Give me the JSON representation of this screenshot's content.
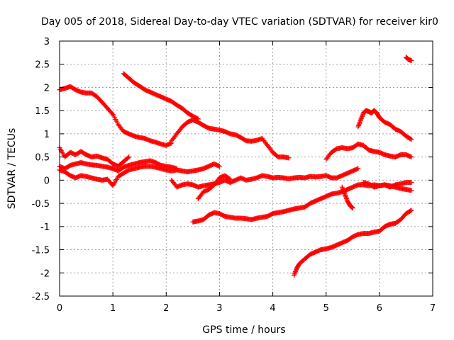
{
  "chart_data": {
    "type": "scatter",
    "title": "Day 005 of 2018, Sidereal Day-to-day VTEC variation (SDTVAR) for receiver kir0",
    "xlabel": "GPS time / hours",
    "ylabel": "SDTVAR / TECUs",
    "xlim": [
      0,
      7
    ],
    "ylim": [
      -2.5,
      3
    ],
    "xticks": [
      0,
      1,
      2,
      3,
      4,
      5,
      6,
      7
    ],
    "yticks": [
      -2.5,
      -2,
      -1.5,
      -1,
      -0.5,
      0,
      0.5,
      1,
      1.5,
      2,
      2.5,
      3
    ],
    "ytick_labels": [
      "-2.5",
      "-2",
      "-1.5",
      "-1",
      "-0.5",
      "0",
      "0.5",
      "1",
      "1.5",
      "2",
      "2.5",
      "3"
    ],
    "grid": true,
    "marker": "plus",
    "color": "#ff0000",
    "series": [
      {
        "x": [
          0,
          0.1,
          0.2,
          0.3,
          0.4,
          0.5,
          0.6,
          0.7,
          0.8,
          0.9,
          1.0,
          1.1,
          1.2,
          1.3,
          1.4,
          1.5,
          1.6,
          1.7,
          1.8,
          1.9,
          2.0,
          2.1
        ],
        "y": [
          1.95,
          1.98,
          2.02,
          1.95,
          1.9,
          1.88,
          1.88,
          1.8,
          1.68,
          1.55,
          1.42,
          1.2,
          1.05,
          1.0,
          0.95,
          0.92,
          0.9,
          0.85,
          0.82,
          0.78,
          0.75,
          0.8
        ]
      },
      {
        "x": [
          2.1,
          2.2,
          2.3,
          2.4,
          2.5,
          2.6,
          2.7,
          2.8,
          2.9,
          3.0,
          3.1,
          3.2,
          3.3,
          3.4,
          3.5,
          3.6,
          3.7,
          3.8,
          3.9,
          4.0,
          4.1,
          4.2,
          4.3
        ],
        "y": [
          0.85,
          1.0,
          1.15,
          1.25,
          1.3,
          1.25,
          1.18,
          1.12,
          1.1,
          1.08,
          1.05,
          1.0,
          0.98,
          0.92,
          0.85,
          0.84,
          0.86,
          0.9,
          0.75,
          0.6,
          0.5,
          0.5,
          0.48
        ]
      },
      {
        "x": [
          1.2,
          1.3,
          1.4,
          1.5,
          1.6,
          1.7,
          1.8,
          1.9,
          2.0,
          2.1,
          2.2,
          2.3,
          2.4,
          2.5,
          2.6
        ],
        "y": [
          2.3,
          2.2,
          2.1,
          2.03,
          1.95,
          1.9,
          1.85,
          1.8,
          1.75,
          1.7,
          1.62,
          1.55,
          1.45,
          1.38,
          1.32
        ]
      },
      {
        "x": [
          0,
          0.1,
          0.2,
          0.3,
          0.4,
          0.5,
          0.6,
          0.7,
          0.8,
          0.9,
          1.0,
          1.1,
          1.2,
          1.3
        ],
        "y": [
          0.7,
          0.5,
          0.6,
          0.55,
          0.62,
          0.55,
          0.5,
          0.52,
          0.48,
          0.45,
          0.35,
          0.3,
          0.4,
          0.5
        ]
      },
      {
        "x": [
          0,
          0.1,
          0.2,
          0.3,
          0.4,
          0.5,
          0.6,
          0.7,
          0.8,
          0.9,
          1.0,
          1.1,
          1.2,
          1.3,
          1.4,
          1.5,
          1.6,
          1.7,
          1.8,
          1.9,
          2.0,
          2.1,
          2.2
        ],
        "y": [
          0.3,
          0.25,
          0.32,
          0.35,
          0.38,
          0.35,
          0.33,
          0.32,
          0.3,
          0.28,
          0.25,
          0.2,
          0.28,
          0.32,
          0.35,
          0.38,
          0.4,
          0.42,
          0.38,
          0.32,
          0.3,
          0.28,
          0.25
        ]
      },
      {
        "x": [
          0,
          0.1,
          0.2,
          0.3,
          0.4,
          0.5,
          0.6,
          0.7,
          0.8,
          0.9,
          1.0,
          1.1,
          1.2,
          1.3,
          1.4,
          1.5,
          1.6,
          1.7,
          1.8,
          1.9,
          2.0,
          2.1,
          2.2,
          2.3,
          2.4,
          2.5,
          2.6,
          2.7,
          2.8,
          2.9,
          3.0
        ],
        "y": [
          0.22,
          0.18,
          0.1,
          0.05,
          0.1,
          0.08,
          0.05,
          0.02,
          0.0,
          0.02,
          -0.12,
          0.08,
          0.15,
          0.22,
          0.25,
          0.28,
          0.3,
          0.3,
          0.28,
          0.25,
          0.22,
          0.2,
          0.22,
          0.2,
          0.18,
          0.2,
          0.22,
          0.25,
          0.3,
          0.35,
          0.3
        ]
      },
      {
        "x": [
          2.1,
          2.2,
          2.3,
          2.4,
          2.5,
          2.6,
          2.7,
          2.8,
          2.9,
          3.0,
          3.1,
          3.2,
          3.3,
          3.4,
          3.5,
          3.6,
          3.7,
          3.8,
          3.9,
          4.0,
          4.1,
          4.2,
          4.3,
          4.4,
          4.5,
          4.6,
          4.7,
          4.8,
          4.9,
          5.0,
          5.1,
          5.2,
          5.3,
          5.4,
          5.5,
          5.6
        ],
        "y": [
          0.0,
          -0.15,
          -0.1,
          -0.08,
          -0.1,
          -0.15,
          -0.12,
          -0.1,
          -0.08,
          -0.05,
          0.0,
          -0.05,
          0.0,
          0.05,
          0.0,
          0.02,
          0.05,
          0.1,
          0.08,
          0.05,
          0.06,
          0.05,
          0.03,
          0.05,
          0.06,
          0.05,
          0.08,
          0.07,
          0.08,
          0.1,
          0.05,
          0.05,
          0.1,
          0.15,
          0.2,
          0.25
        ]
      },
      {
        "x": [
          2.5,
          2.6,
          2.7,
          2.8,
          2.9,
          3.0,
          3.1,
          3.2,
          3.3,
          3.4,
          3.5,
          3.6,
          3.7,
          3.8,
          3.9,
          4.0,
          4.1,
          4.2,
          4.3,
          4.4,
          4.5,
          4.6,
          4.7,
          4.8,
          4.9,
          5.0,
          5.1,
          5.2,
          5.3,
          5.4
        ],
        "y": [
          -0.9,
          -0.88,
          -0.85,
          -0.75,
          -0.7,
          -0.72,
          -0.78,
          -0.8,
          -0.82,
          -0.82,
          -0.83,
          -0.85,
          -0.82,
          -0.8,
          -0.78,
          -0.72,
          -0.7,
          -0.68,
          -0.65,
          -0.62,
          -0.6,
          -0.58,
          -0.5,
          -0.45,
          -0.4,
          -0.35,
          -0.3,
          -0.28,
          -0.25,
          -0.2
        ]
      },
      {
        "x": [
          2.6,
          2.7,
          2.8,
          2.9,
          3.0,
          3.1,
          3.2
        ],
        "y": [
          -0.4,
          -0.25,
          -0.2,
          -0.1,
          0.05,
          0.1,
          0.02
        ]
      },
      {
        "x": [
          5.4,
          5.5,
          5.6,
          5.7,
          5.8,
          5.9,
          6.0,
          6.1,
          6.2,
          6.3,
          6.4,
          6.5,
          6.6
        ],
        "y": [
          -0.2,
          -0.15,
          -0.1,
          -0.1,
          -0.12,
          -0.1,
          -0.12,
          -0.1,
          -0.12,
          -0.15,
          -0.18,
          -0.2,
          -0.22
        ]
      },
      {
        "x": [
          5.7,
          5.8,
          5.9,
          6.0,
          6.1,
          6.2,
          6.3,
          6.4,
          6.5,
          6.6
        ],
        "y": [
          -0.05,
          -0.08,
          -0.15,
          -0.12,
          -0.1,
          -0.15,
          -0.1,
          -0.08,
          -0.05,
          -0.05
        ]
      },
      {
        "x": [
          5.3,
          5.35,
          5.4,
          5.45,
          5.5
        ],
        "y": [
          -0.15,
          -0.3,
          -0.45,
          -0.55,
          -0.6
        ]
      },
      {
        "x": [
          4.4,
          4.45,
          4.5,
          4.6,
          4.7,
          4.8,
          4.9,
          5.0,
          5.1,
          5.2,
          5.3,
          5.4,
          5.5,
          5.6,
          5.7,
          5.8,
          5.9,
          6.0,
          6.1,
          6.2,
          6.3,
          6.4,
          6.5,
          6.6
        ],
        "y": [
          -2.05,
          -1.9,
          -1.8,
          -1.7,
          -1.6,
          -1.55,
          -1.5,
          -1.48,
          -1.45,
          -1.4,
          -1.35,
          -1.3,
          -1.22,
          -1.17,
          -1.15,
          -1.15,
          -1.12,
          -1.1,
          -1.0,
          -0.95,
          -0.93,
          -0.85,
          -0.72,
          -0.65
        ]
      },
      {
        "x": [
          5.0,
          5.1,
          5.2,
          5.3,
          5.4,
          5.5,
          5.6,
          5.7,
          5.8,
          5.9,
          6.0,
          6.1,
          6.2,
          6.3,
          6.4,
          6.5,
          6.6
        ],
        "y": [
          0.45,
          0.6,
          0.68,
          0.7,
          0.68,
          0.7,
          0.78,
          0.75,
          0.65,
          0.62,
          0.6,
          0.55,
          0.52,
          0.5,
          0.55,
          0.55,
          0.5
        ]
      },
      {
        "x": [
          5.6,
          5.65,
          5.7,
          5.75,
          5.8,
          5.85,
          5.9,
          5.95,
          6.0,
          6.1,
          6.2,
          6.3,
          6.4,
          6.5,
          6.6
        ],
        "y": [
          1.15,
          1.3,
          1.45,
          1.5,
          1.48,
          1.45,
          1.5,
          1.45,
          1.35,
          1.25,
          1.2,
          1.1,
          1.05,
          0.95,
          0.88
        ]
      },
      {
        "x": [
          6.5,
          6.55,
          6.6
        ],
        "y": [
          2.65,
          2.6,
          2.58
        ]
      }
    ]
  }
}
